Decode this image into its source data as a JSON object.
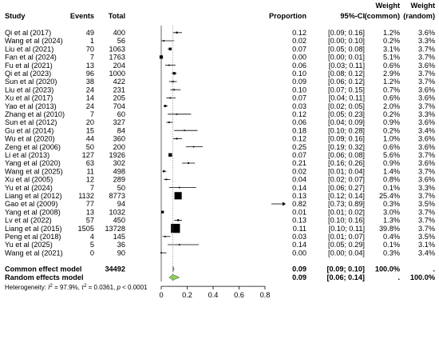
{
  "headers": {
    "study": "Study",
    "events": "Events",
    "total": "Total",
    "proportion": "Proportion",
    "ci": "95%-CI",
    "weight_common": [
      "Weight",
      "(common)"
    ],
    "weight_random": [
      "Weight",
      "(random)"
    ]
  },
  "chart_data": {
    "type": "forest",
    "xlim": [
      0,
      0.8
    ],
    "xticks": [
      "0",
      "0.2",
      "0.4",
      "0.6",
      "0.8"
    ],
    "studies": [
      {
        "name": "Qi et al (2017)",
        "events": "49",
        "total": "400",
        "prop": 0.12,
        "lo": 0.09,
        "hi": 0.16,
        "p": "0.12",
        "ci": "[0.09; 0.16]",
        "wc": "1.2%",
        "wr": "3.6%"
      },
      {
        "name": "Wang et al (2024)",
        "events": "1",
        "total": "56",
        "prop": 0.02,
        "lo": 0.0,
        "hi": 0.1,
        "p": "0.02",
        "ci": "[0.00; 0.10]",
        "wc": "0.2%",
        "wr": "3.3%"
      },
      {
        "name": "Liu et al (2021)",
        "events": "70",
        "total": "1063",
        "prop": 0.07,
        "lo": 0.05,
        "hi": 0.08,
        "p": "0.07",
        "ci": "[0.05; 0.08]",
        "wc": "3.1%",
        "wr": "3.7%"
      },
      {
        "name": "Fan et al (2024)",
        "events": "7",
        "total": "1763",
        "prop": 0.0,
        "lo": 0.0,
        "hi": 0.01,
        "p": "0.00",
        "ci": "[0.00; 0.01]",
        "wc": "5.1%",
        "wr": "3.7%"
      },
      {
        "name": "Fu et al (2021)",
        "events": "13",
        "total": "204",
        "prop": 0.06,
        "lo": 0.03,
        "hi": 0.11,
        "p": "0.06",
        "ci": "[0.03; 0.11]",
        "wc": "0.6%",
        "wr": "3.6%"
      },
      {
        "name": "Qi et al (2023)",
        "events": "96",
        "total": "1000",
        "prop": 0.1,
        "lo": 0.08,
        "hi": 0.12,
        "p": "0.10",
        "ci": "[0.08; 0.12]",
        "wc": "2.9%",
        "wr": "3.7%"
      },
      {
        "name": "Sun et al (2020)",
        "events": "38",
        "total": "422",
        "prop": 0.09,
        "lo": 0.06,
        "hi": 0.12,
        "p": "0.09",
        "ci": "[0.06; 0.12]",
        "wc": "1.2%",
        "wr": "3.7%"
      },
      {
        "name": "Liu et al (2023)",
        "events": "24",
        "total": "231",
        "prop": 0.1,
        "lo": 0.07,
        "hi": 0.15,
        "p": "0.10",
        "ci": "[0.07; 0.15]",
        "wc": "0.7%",
        "wr": "3.6%"
      },
      {
        "name": "Xu et al (2017)",
        "events": "14",
        "total": "205",
        "prop": 0.07,
        "lo": 0.04,
        "hi": 0.11,
        "p": "0.07",
        "ci": "[0.04; 0.11]",
        "wc": "0.6%",
        "wr": "3.6%"
      },
      {
        "name": "Yao et al (2013)",
        "events": "24",
        "total": "704",
        "prop": 0.03,
        "lo": 0.02,
        "hi": 0.05,
        "p": "0.03",
        "ci": "[0.02; 0.05]",
        "wc": "2.0%",
        "wr": "3.7%"
      },
      {
        "name": "Zhang et al (2010)",
        "events": "7",
        "total": "60",
        "prop": 0.12,
        "lo": 0.05,
        "hi": 0.23,
        "p": "0.12",
        "ci": "[0.05; 0.23]",
        "wc": "0.2%",
        "wr": "3.3%"
      },
      {
        "name": "Sun et al (2012)",
        "events": "20",
        "total": "327",
        "prop": 0.06,
        "lo": 0.04,
        "hi": 0.09,
        "p": "0.06",
        "ci": "[0.04; 0.09]",
        "wc": "0.9%",
        "wr": "3.6%"
      },
      {
        "name": "Gu et al (2014)",
        "events": "15",
        "total": "84",
        "prop": 0.18,
        "lo": 0.1,
        "hi": 0.28,
        "p": "0.18",
        "ci": "[0.10; 0.28]",
        "wc": "0.2%",
        "wr": "3.4%"
      },
      {
        "name": "Wu et al (2020)",
        "events": "44",
        "total": "360",
        "prop": 0.12,
        "lo": 0.09,
        "hi": 0.16,
        "p": "0.12",
        "ci": "[0.09; 0.16]",
        "wc": "1.0%",
        "wr": "3.6%"
      },
      {
        "name": "Zeng et al (2006)",
        "events": "50",
        "total": "200",
        "prop": 0.25,
        "lo": 0.19,
        "hi": 0.32,
        "p": "0.25",
        "ci": "[0.19; 0.32]",
        "wc": "0.6%",
        "wr": "3.6%"
      },
      {
        "name": "Li et al (2013)",
        "events": "127",
        "total": "1926",
        "prop": 0.07,
        "lo": 0.06,
        "hi": 0.08,
        "p": "0.07",
        "ci": "[0.06; 0.08]",
        "wc": "5.6%",
        "wr": "3.7%"
      },
      {
        "name": "Yang et al (2020)",
        "events": "63",
        "total": "302",
        "prop": 0.21,
        "lo": 0.16,
        "hi": 0.26,
        "p": "0.21",
        "ci": "[0.16; 0.26]",
        "wc": "0.9%",
        "wr": "3.6%"
      },
      {
        "name": "Wang et al (2025)",
        "events": "11",
        "total": "498",
        "prop": 0.02,
        "lo": 0.01,
        "hi": 0.04,
        "p": "0.02",
        "ci": "[0.01; 0.04]",
        "wc": "1.4%",
        "wr": "3.7%"
      },
      {
        "name": "Xu et al (2005)",
        "events": "12",
        "total": "289",
        "prop": 0.04,
        "lo": 0.02,
        "hi": 0.07,
        "p": "0.04",
        "ci": "[0.02; 0.07]",
        "wc": "0.8%",
        "wr": "3.6%"
      },
      {
        "name": "Yu et al (2024)",
        "events": "7",
        "total": "50",
        "prop": 0.14,
        "lo": 0.06,
        "hi": 0.27,
        "p": "0.14",
        "ci": "[0.06; 0.27]",
        "wc": "0.1%",
        "wr": "3.3%"
      },
      {
        "name": "Liang et al (2012)",
        "events": "1132",
        "total": "8773",
        "prop": 0.13,
        "lo": 0.12,
        "hi": 0.14,
        "p": "0.13",
        "ci": "[0.12; 0.14]",
        "wc": "25.4%",
        "wr": "3.7%"
      },
      {
        "name": "Gao et al (2009)",
        "events": "77",
        "total": "94",
        "prop": 0.82,
        "lo": 0.73,
        "hi": 0.89,
        "p": "0.82",
        "ci": "[0.73; 0.89]",
        "wc": "0.3%",
        "wr": "3.5%"
      },
      {
        "name": "Yang et al (2008)",
        "events": "13",
        "total": "1032",
        "prop": 0.01,
        "lo": 0.01,
        "hi": 0.02,
        "p": "0.01",
        "ci": "[0.01; 0.02]",
        "wc": "3.0%",
        "wr": "3.7%"
      },
      {
        "name": "Lv et al (2022)",
        "events": "57",
        "total": "450",
        "prop": 0.13,
        "lo": 0.1,
        "hi": 0.16,
        "p": "0.13",
        "ci": "[0.10; 0.16]",
        "wc": "1.3%",
        "wr": "3.7%"
      },
      {
        "name": "Liang et al (2015)",
        "events": "1505",
        "total": "13728",
        "prop": 0.11,
        "lo": 0.1,
        "hi": 0.11,
        "p": "0.11",
        "ci": "[0.10; 0.11]",
        "wc": "39.8%",
        "wr": "3.7%"
      },
      {
        "name": "Peng et al (2018)",
        "events": "4",
        "total": "145",
        "prop": 0.03,
        "lo": 0.01,
        "hi": 0.07,
        "p": "0.03",
        "ci": "[0.01; 0.07]",
        "wc": "0.4%",
        "wr": "3.5%"
      },
      {
        "name": "Yu et al (2025)",
        "events": "5",
        "total": "36",
        "prop": 0.14,
        "lo": 0.05,
        "hi": 0.29,
        "p": "0.14",
        "ci": "[0.05; 0.29]",
        "wc": "0.1%",
        "wr": "3.1%"
      },
      {
        "name": "Wang et al (2021)",
        "events": "0",
        "total": "90",
        "prop": 0.0,
        "lo": 0.0,
        "hi": 0.04,
        "p": "0.00",
        "ci": "[0.00; 0.04]",
        "wc": "0.3%",
        "wr": "3.4%"
      }
    ],
    "common": {
      "label": "Common effect model",
      "total": "34492",
      "est": 0.09,
      "lo": 0.09,
      "hi": 0.1,
      "p": "0.09",
      "ci": "[0.09; 0.10]",
      "wc": "100.0%",
      "wr": "."
    },
    "random": {
      "label": "Random effects model",
      "est": 0.09,
      "lo": 0.06,
      "hi": 0.14,
      "p": "0.09",
      "ci": "[0.06; 0.14]",
      "wc": ".",
      "wr": "100.0%"
    },
    "heterogeneity": {
      "prefix": "Heterogeneity: ",
      "i2": " = 97.9%, ",
      "tau2": " = 0.0361, ",
      "pval": " < 0.0001"
    },
    "colors": {
      "random_diamond": "#8dd35f",
      "common_diamond": "#a0a0a0",
      "line": "#000000"
    }
  }
}
